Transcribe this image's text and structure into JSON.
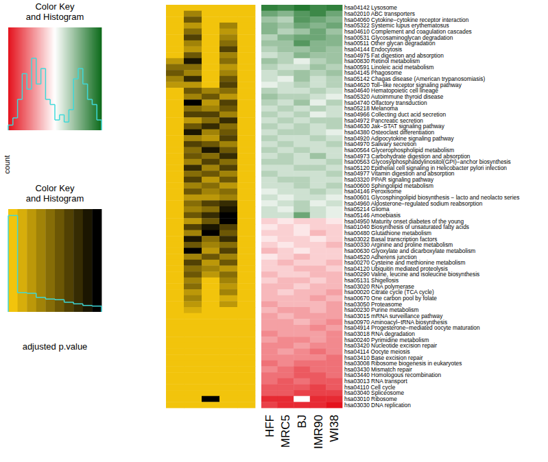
{
  "chart_data": {
    "type": "heatmap",
    "rows": [
      "hsa04142 Lysosome",
      "hsa02010 ABC transporters",
      "hsa04060 Cytokine−cytokine receptor interaction",
      "hsa05322 Systemic lupus erythematosus",
      "hsa04610 Complement and coagulation cascades",
      "hsa00531 Glycosaminoglycan degradation",
      "hsa00511 Other glycan degradation",
      "hsa04144 Endocytosis",
      "hsa04975 Fat digestion and absorption",
      "hsa00830 Retinol metabolism",
      "hsa00591 Linoleic acid metabolism",
      "hsa04145 Phagosome",
      "hsa05142 Chagas disease (American trypanosomiasis)",
      "hsa04620 Toll−like receptor signaling pathway",
      "hsa04640 Hematopoietic cell lineage",
      "hsa05320 Autoimmune thyroid disease",
      "hsa04740 Olfactory transduction",
      "hsa05218 Melanoma",
      "hsa04966 Collecting duct acid secretion",
      "hsa04972 Pancreatic secretion",
      "hsa04630 Jak−STAT signaling pathway",
      "hsa04380 Osteoclast differentiation",
      "hsa04920 Adipocytokine signaling pathway",
      "hsa04970 Salivary secretion",
      "hsa00564 Glycerophospholipid metabolism",
      "hsa04973 Carbohydrate digestion and absorption",
      "hsa00563 Glycosylphosphatidylinositol(GPI)−anchor biosynthesis",
      "hsa05120 Epithelial cell signaling in Helicobacter pylori infection",
      "hsa04977 Vitamin digestion and absorption",
      "hsa03320 PPAR signaling pathway",
      "hsa00600 Sphingolipid metabolism",
      "hsa04146 Peroxisome",
      "hsa00601 Glycosphingolipid biosynthesis − lacto and neolacto series",
      "hsa04960 Aldosterone−regulated sodium reabsorption",
      "hsa05214 Glioma",
      "hsa05146 Amoebiasis",
      "hsa04950 Maturity onset diabetes of the young",
      "hsa01040 Biosynthesis of unsaturated fatty acids",
      "hsa00480 Glutathione metabolism",
      "hsa03022 Basal transcription factors",
      "hsa00330 Arginine and proline metabolism",
      "hsa00630 Glyoxylate and dicarboxylate metabolism",
      "hsa04520 Adherens junction",
      "hsa00270 Cysteine and methionine metabolism",
      "hsa04120 Ubiquitin mediated proteolysis",
      "hsa00290 Valine, leucine and isoleucine biosynthesis",
      "hsa05131 Shigellosis",
      "hsa03020 RNA polymerase",
      "hsa00020 Citrate cycle (TCA cycle)",
      "hsa00670 One carbon pool by folate",
      "hsa03050 Proteasome",
      "hsa00230 Purine metabolism",
      "hsa03015 mRNA surveillance pathway",
      "hsa00970 Aminoacyl−tRNA biosynthesis",
      "hsa04914 Progesterone−mediated oocyte maturation",
      "hsa03018 RNA degradation",
      "hsa00240 Pyrimidine metabolism",
      "hsa03420 Nucleotide excision repair",
      "hsa04114 Oocyte meiosis",
      "hsa03410 Base excision repair",
      "hsa03008 Ribosome biogenesis in eukaryotes",
      "hsa03430 Mismatch repair",
      "hsa03440 Homologous recombination",
      "hsa03013 RNA transport",
      "hsa04110 Cell cycle",
      "hsa03040 Spliceosome",
      "hsa03010 Ribosome",
      "hsa03030 DNA replication"
    ],
    "columns": [
      "HFF",
      "MRC5",
      "BJ",
      "IMR90",
      "WI38"
    ],
    "values": [
      [
        0.85,
        0.8,
        0.9,
        0.8,
        0.85
      ],
      [
        0.6,
        0.5,
        0.7,
        0.8,
        0.6
      ],
      [
        0.4,
        0.3,
        0.7,
        0.6,
        0.5
      ],
      [
        0.5,
        0.4,
        0.6,
        0.5,
        0.6
      ],
      [
        0.5,
        0.3,
        0.4,
        0.6,
        0.4
      ],
      [
        0.3,
        0.5,
        0.6,
        0.6,
        0.5
      ],
      [
        0.4,
        0.4,
        0.7,
        0.5,
        0.5
      ],
      [
        0.3,
        0.4,
        0.4,
        0.5,
        0.4
      ],
      [
        0.2,
        0.3,
        0.5,
        0.4,
        0.4
      ],
      [
        0.4,
        0.3,
        0.1,
        0.3,
        0.4
      ],
      [
        0.3,
        0.2,
        0.2,
        0.4,
        0.3
      ],
      [
        0.2,
        0.3,
        0.4,
        0.3,
        0.4
      ],
      [
        0.2,
        0.1,
        0.4,
        0.2,
        0.3
      ],
      [
        0.1,
        0.2,
        0.3,
        0.2,
        0.3
      ],
      [
        0.3,
        0.2,
        0.2,
        0.3,
        0.2
      ],
      [
        0.4,
        0.3,
        0.3,
        0.2,
        0.1
      ],
      [
        0.3,
        0.2,
        0.4,
        0.1,
        0.3
      ],
      [
        0.2,
        0.3,
        0.2,
        0.3,
        0.2
      ],
      [
        0.3,
        0.2,
        0.3,
        0.1,
        0.2
      ],
      [
        0.2,
        0.3,
        0.2,
        0.3,
        0.3
      ],
      [
        0.3,
        0.2,
        0.3,
        0.2,
        0.3
      ],
      [
        0.2,
        0.3,
        0.3,
        0.2,
        0.1
      ],
      [
        0.3,
        0.2,
        0.2,
        0.3,
        0.2
      ],
      [
        0.2,
        0.3,
        0.2,
        0.2,
        0.3
      ],
      [
        0.3,
        0.2,
        0.3,
        0.2,
        0.2
      ],
      [
        0.2,
        0.3,
        0.2,
        0.4,
        0.2
      ],
      [
        0.3,
        0.3,
        0.2,
        0.2,
        0.3
      ],
      [
        0.2,
        0.2,
        0.3,
        0.3,
        0.2
      ],
      [
        0.3,
        0.2,
        0.2,
        0.2,
        0.3
      ],
      [
        0.2,
        0.3,
        0.3,
        0.2,
        0.2
      ],
      [
        0.2,
        0.2,
        0.3,
        0.2,
        0.3
      ],
      [
        0.1,
        0.2,
        0.2,
        0.3,
        0.2
      ],
      [
        0.2,
        0.1,
        0.2,
        0.2,
        0.1
      ],
      [
        0.1,
        0.2,
        0.3,
        0.1,
        0.2
      ],
      [
        0.2,
        0.1,
        0.3,
        0.2,
        0.1
      ],
      [
        0.2,
        0.2,
        0.6,
        0.2,
        0.1
      ],
      [
        -0.2,
        -0.1,
        -0.2,
        -0.2,
        -0.1
      ],
      [
        -0.1,
        -0.2,
        -0.1,
        -0.2,
        -0.2
      ],
      [
        -0.2,
        -0.2,
        -0.1,
        -0.3,
        -0.2
      ],
      [
        -0.1,
        -0.2,
        -0.2,
        -0.1,
        -0.2
      ],
      [
        -0.2,
        -0.1,
        -0.2,
        -0.2,
        -0.3
      ],
      [
        -0.3,
        -0.2,
        -0.1,
        -0.2,
        -0.2
      ],
      [
        -0.1,
        -0.2,
        -0.3,
        -0.2,
        -0.2
      ],
      [
        -0.2,
        -0.3,
        -0.2,
        -0.2,
        -0.3
      ],
      [
        -0.2,
        -0.2,
        -0.3,
        -0.3,
        -0.2
      ],
      [
        -0.3,
        -0.2,
        -0.2,
        -0.3,
        -0.3
      ],
      [
        -0.2,
        -0.3,
        -0.3,
        -0.2,
        -0.3
      ],
      [
        -0.3,
        -0.3,
        -0.2,
        -0.3,
        -0.3
      ],
      [
        -0.3,
        -0.2,
        -0.3,
        -0.3,
        -0.4
      ],
      [
        -0.3,
        -0.3,
        -0.3,
        -0.4,
        -0.3
      ],
      [
        -0.4,
        -0.3,
        -0.3,
        -0.3,
        -0.4
      ],
      [
        -0.3,
        -0.4,
        -0.4,
        -0.3,
        -0.4
      ],
      [
        -0.4,
        -0.3,
        -0.4,
        -0.4,
        -0.4
      ],
      [
        -0.4,
        -0.4,
        -0.3,
        -0.4,
        -0.5
      ],
      [
        -0.4,
        -0.4,
        -0.4,
        -0.5,
        -0.4
      ],
      [
        -0.5,
        -0.4,
        -0.4,
        -0.4,
        -0.5
      ],
      [
        -0.4,
        -0.5,
        -0.5,
        -0.4,
        -0.5
      ],
      [
        -0.5,
        -0.5,
        -0.4,
        -0.5,
        -0.5
      ],
      [
        -0.5,
        -0.4,
        -0.5,
        -0.6,
        -0.5
      ],
      [
        -0.5,
        -0.5,
        -0.5,
        -0.5,
        -0.6
      ],
      [
        -0.6,
        -0.5,
        -0.6,
        -0.6,
        -0.6
      ],
      [
        -0.5,
        -0.6,
        -0.7,
        -0.6,
        -0.6
      ],
      [
        -0.6,
        -0.6,
        -0.7,
        -0.7,
        -0.6
      ],
      [
        -0.6,
        -0.7,
        -0.6,
        -0.7,
        -0.7
      ],
      [
        -0.7,
        -0.7,
        -0.7,
        -0.8,
        -0.7
      ],
      [
        -0.7,
        -0.7,
        -0.8,
        -0.8,
        -0.8
      ],
      [
        -0.9,
        -0.9,
        0.0,
        -0.9,
        -0.9
      ],
      [
        -0.8,
        -0.9,
        -0.9,
        -0.9,
        -1.0
      ]
    ],
    "color_range": [
      -1,
      1
    ],
    "color_key": {
      "title_lines": [
        "Color Key",
        "and Histogram"
      ],
      "bins": [
        -1,
        -0.9,
        -0.8,
        -0.7,
        -0.6,
        -0.5,
        -0.4,
        -0.3,
        -0.2,
        -0.1,
        0,
        0.1,
        0.2,
        0.3,
        0.4,
        0.5,
        0.6,
        0.7,
        0.8,
        0.9,
        1
      ],
      "counts": [
        5,
        12,
        30,
        55,
        40,
        70,
        45,
        60,
        30,
        25,
        10,
        15,
        8,
        20,
        50,
        60,
        45,
        30,
        25,
        10
      ],
      "count_lim": [
        0,
        100
      ]
    },
    "pvalue_heatmap": {
      "values": [
        [
          0,
          0,
          0,
          0,
          0
        ],
        [
          0,
          0.3,
          0,
          0,
          0
        ],
        [
          0,
          0.5,
          0,
          0,
          0
        ],
        [
          0,
          0.2,
          0,
          0.3,
          0
        ],
        [
          0,
          0.4,
          0,
          0.2,
          0
        ],
        [
          0,
          0.6,
          0,
          0.3,
          0
        ],
        [
          0,
          0.3,
          0,
          0.4,
          0
        ],
        [
          0,
          0.2,
          0,
          0.6,
          0
        ],
        [
          0,
          0.5,
          0,
          0.3,
          0
        ],
        [
          0.2,
          0.8,
          0,
          0.4,
          0
        ],
        [
          0.4,
          0.4,
          0,
          0.2,
          0
        ],
        [
          0.5,
          0.3,
          0,
          0.3,
          0
        ],
        [
          0.3,
          0.7,
          0,
          0.5,
          0
        ],
        [
          0.2,
          0.2,
          0,
          0.6,
          0
        ],
        [
          0,
          0.5,
          0.3,
          0.4,
          0
        ],
        [
          0,
          0.3,
          0.5,
          0.2,
          0
        ],
        [
          0,
          0.9,
          0.2,
          0.6,
          0
        ],
        [
          0,
          0.4,
          0.3,
          0.5,
          0
        ],
        [
          0,
          0.6,
          0.6,
          0.3,
          0
        ],
        [
          0,
          0.2,
          0.4,
          0.7,
          0
        ],
        [
          0,
          0.5,
          0.7,
          0.4,
          0
        ],
        [
          0,
          0.8,
          0.3,
          0.5,
          0
        ],
        [
          0,
          0.3,
          0.2,
          0.6,
          0
        ],
        [
          0,
          0.6,
          0.5,
          0.3,
          0
        ],
        [
          0,
          0.4,
          0.8,
          0.5,
          0
        ],
        [
          0,
          0.5,
          0.4,
          0.7,
          0
        ],
        [
          0,
          0.3,
          0.6,
          0.4,
          0
        ],
        [
          0,
          0.7,
          0.3,
          0.6,
          0
        ],
        [
          0,
          0.4,
          0.5,
          0.3,
          0
        ],
        [
          0,
          0.6,
          0.2,
          0.5,
          0
        ],
        [
          0,
          0.3,
          0.4,
          0.2,
          0
        ],
        [
          0,
          0.5,
          0.3,
          0.4,
          0
        ],
        [
          0,
          0.2,
          0.2,
          0.3,
          0
        ],
        [
          0,
          0.4,
          0.6,
          0.7,
          0
        ],
        [
          0,
          0.3,
          0.4,
          0.8,
          0
        ],
        [
          0,
          0.5,
          0.7,
          0.9,
          0
        ],
        [
          0,
          0.2,
          0.5,
          0.9,
          0
        ],
        [
          0,
          0.6,
          0.8,
          0.6,
          0
        ],
        [
          0,
          0.3,
          0.9,
          0.5,
          0
        ],
        [
          0,
          0.8,
          0.4,
          0.7,
          0
        ],
        [
          0,
          0.5,
          0.3,
          0.4,
          0
        ],
        [
          0,
          0.9,
          0.2,
          0.6,
          0
        ],
        [
          0,
          0.3,
          0.5,
          0.3,
          0
        ],
        [
          0,
          0.6,
          0.2,
          0.5,
          0
        ],
        [
          0,
          0.4,
          0.3,
          0.2,
          0
        ],
        [
          0,
          0.5,
          0.2,
          0.4,
          0
        ],
        [
          0,
          0.3,
          0,
          0.3,
          0
        ],
        [
          0,
          0.4,
          0,
          0.2,
          0
        ],
        [
          0,
          0.2,
          0,
          0.3,
          0
        ],
        [
          0,
          0.3,
          0,
          0.1,
          0
        ],
        [
          0,
          0.2,
          0,
          0.2,
          0
        ],
        [
          0,
          0.1,
          0,
          0,
          0
        ],
        [
          0,
          0,
          0,
          0,
          0
        ],
        [
          0,
          0,
          0,
          0,
          0
        ],
        [
          0,
          0,
          0,
          0,
          0
        ],
        [
          0,
          0,
          0,
          0,
          0
        ],
        [
          0,
          0,
          0,
          0,
          0
        ],
        [
          0,
          0,
          0,
          0,
          0
        ],
        [
          0,
          0,
          0,
          0,
          0
        ],
        [
          0,
          0,
          0,
          0,
          0
        ],
        [
          0,
          0,
          0,
          0,
          0
        ],
        [
          0,
          0,
          0,
          0,
          0
        ],
        [
          0,
          0,
          0,
          0,
          0
        ],
        [
          0,
          0,
          0,
          0,
          0
        ],
        [
          0,
          0,
          0,
          0,
          0
        ],
        [
          0,
          0,
          0,
          0,
          0
        ],
        [
          0,
          0,
          1,
          0,
          0
        ],
        [
          0,
          0,
          0,
          0,
          0
        ]
      ],
      "color_range": [
        0,
        1
      ],
      "color_key": {
        "title_lines": [
          "Color Key",
          "and Histogram"
        ],
        "label": "adjusted p.value",
        "ylabel": "count",
        "bins": [
          0,
          0.1,
          0.2,
          0.3,
          0.4,
          0.5,
          0.6,
          0.7,
          0.8,
          0.9,
          1
        ],
        "counts": [
          300,
          60,
          58,
          45,
          40,
          38,
          30,
          25,
          20,
          18
        ],
        "count_lim": [
          0,
          320
        ]
      }
    }
  }
}
